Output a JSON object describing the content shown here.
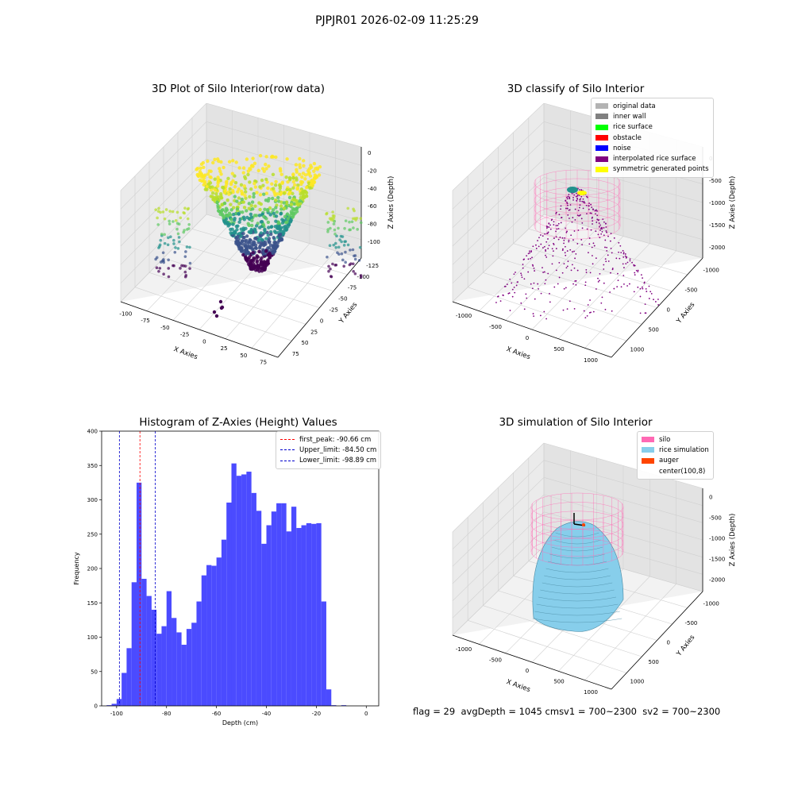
{
  "suptitle": "PJPJR01 2026-02-09 11:25:29",
  "colors": {
    "hist_bar": "#4b4bff",
    "first_peak": "#ff0000",
    "limits": "#0000cc",
    "silo": "#ff69b4",
    "rice": "#87ceeb",
    "auger": "#ff4500",
    "classify_surface": "#800080",
    "viridis": [
      "#440154",
      "#3b528b",
      "#21918c",
      "#5ec962",
      "#b8de29",
      "#fde725"
    ]
  },
  "panel_tl": {
    "title": "3D Plot of Silo Interior(row data)",
    "xlabel": "X Axies",
    "ylabel": "Y Axies",
    "zlabel": "Z Axies (Depth)",
    "xticks": [
      "-100",
      "-75",
      "-50",
      "-25",
      "0",
      "25",
      "50",
      "75"
    ],
    "yticks": [
      "75",
      "50",
      "25",
      "0",
      "-25",
      "-50",
      "-75",
      "-100",
      "-125"
    ],
    "zticks": [
      "0",
      "-20",
      "-40",
      "-60",
      "-80",
      "-100"
    ]
  },
  "panel_tr": {
    "title": "3D classify of Silo Interior",
    "xlabel": "X Axies",
    "ylabel": "Y Axies",
    "zlabel": "Z Axies (Depth)",
    "xticks": [
      "-1000",
      "-500",
      "0",
      "500",
      "1000"
    ],
    "yticks": [
      "1000",
      "500",
      "0",
      "-500",
      "-1000"
    ],
    "zticks": [
      "0",
      "-500",
      "-1000",
      "-1500",
      "-2000"
    ],
    "legend": [
      {
        "label": "original data",
        "color": "#b3b3b3"
      },
      {
        "label": "inner wall",
        "color": "#808080"
      },
      {
        "label": "rice surface",
        "color": "#00ff00"
      },
      {
        "label": "obstacle",
        "color": "#ff0000"
      },
      {
        "label": "noise",
        "color": "#0000ff"
      },
      {
        "label": "interpolated rice surface",
        "color": "#800080"
      },
      {
        "label": "symmetric generated points",
        "color": "#ffff00"
      }
    ]
  },
  "panel_bl": {
    "title": "Histogram of Z-Axies (Height) Values",
    "legend": [
      {
        "label": "first_peak: -90.66 cm",
        "color": "#ff0000"
      },
      {
        "label": "Upper_limit: -84.50 cm",
        "color": "#0000cc"
      },
      {
        "label": "Lower_limit: -98.89 cm",
        "color": "#0000cc"
      }
    ]
  },
  "panel_br": {
    "title": "3D simulation of Silo Interior",
    "xlabel": "X Axies",
    "ylabel": "Y Axies",
    "zlabel": "Z Axies (Depth)",
    "xticks": [
      "-1000",
      "-500",
      "0",
      "500",
      "1000"
    ],
    "yticks": [
      "1000",
      "500",
      "0",
      "-500",
      "-1000"
    ],
    "zticks": [
      "0",
      "-500",
      "-1000",
      "-1500",
      "-2000"
    ],
    "legend": [
      {
        "label": "silo",
        "color": "#ff69b4"
      },
      {
        "label": "rice simulation",
        "color": "#87ceeb"
      },
      {
        "label": "auger",
        "color": "#ff4500"
      },
      {
        "label": "center(100,8)",
        "color": ""
      }
    ]
  },
  "status": {
    "flag": "flag = 29",
    "avg": "avgDepth = 1045 cm",
    "sv1": "sv1 = 700~2300",
    "sv2": "sv2 = 700~2300"
  },
  "chart_data": [
    {
      "type": "scatter",
      "title": "3D Plot of Silo Interior(row data)",
      "xlabel": "X Axies",
      "ylabel": "Y Axies",
      "zlabel": "Z Axies (Depth)",
      "xlim": [
        -105,
        85
      ],
      "ylim": [
        -130,
        85
      ],
      "zlim": [
        -105,
        5
      ]
    },
    {
      "type": "scatter",
      "title": "3D classify of Silo Interior",
      "xlabel": "X Axies",
      "ylabel": "Y Axies",
      "zlabel": "Z Axies (Depth)",
      "xlim": [
        -1200,
        1200
      ],
      "ylim": [
        -1200,
        1200
      ],
      "zlim": [
        -2300,
        200
      ]
    },
    {
      "type": "bar",
      "title": "Histogram of Z-Axies (Height) Values",
      "xlabel": "Depth (cm)",
      "ylabel": "Frequency",
      "xlim": [
        -106,
        5
      ],
      "ylim": [
        0,
        400
      ],
      "xticks": [
        -100,
        -80,
        -60,
        -40,
        -20,
        0
      ],
      "yticks": [
        0,
        50,
        100,
        150,
        200,
        250,
        300,
        350,
        400
      ],
      "bin_start": -104,
      "bin_width": 2,
      "values": [
        1,
        3,
        10,
        48,
        84,
        180,
        325,
        185,
        160,
        140,
        105,
        116,
        167,
        128,
        107,
        89,
        112,
        121,
        152,
        190,
        205,
        204,
        216,
        242,
        296,
        353,
        335,
        337,
        341,
        310,
        284,
        236,
        263,
        283,
        295,
        295,
        254,
        290,
        259,
        263,
        266,
        265,
        266,
        152,
        24,
        1,
        0,
        1,
        0
      ],
      "vlines": [
        {
          "name": "first_peak",
          "x": -90.66
        },
        {
          "name": "Upper_limit",
          "x": -84.5
        },
        {
          "name": "Lower_limit",
          "x": -98.89
        }
      ],
      "legend_position": "top-right"
    },
    {
      "type": "area",
      "title": "3D simulation of Silo Interior",
      "xlabel": "X Axies",
      "ylabel": "Y Axies",
      "zlabel": "Z Axies (Depth)",
      "xlim": [
        -1200,
        1200
      ],
      "ylim": [
        -1200,
        1200
      ],
      "zlim": [
        -2300,
        200
      ]
    }
  ]
}
